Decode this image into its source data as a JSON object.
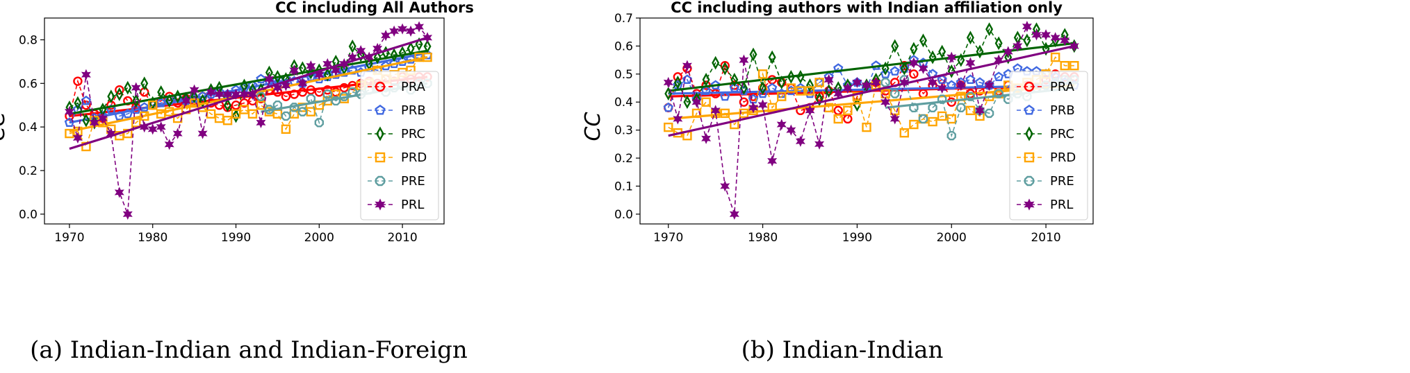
{
  "chart_data": [
    {
      "type": "line",
      "title": "CC including All Authors",
      "caption": "(a) Indian-Indian and Indian-Foreign",
      "ylabel": "CC",
      "xlabel": "",
      "xlim": [
        1967,
        2015
      ],
      "ylim": [
        -0.045,
        0.9
      ],
      "xticks": [
        1970,
        1980,
        1990,
        2000,
        2010
      ],
      "yticks": [
        0.0,
        0.2,
        0.4,
        0.6,
        0.8
      ],
      "ytick_labels": [
        "0.0",
        "0.2",
        "0.4",
        "0.6",
        "0.8"
      ],
      "legend_position": "lower-right",
      "x": [
        1970,
        1971,
        1972,
        1973,
        1974,
        1975,
        1976,
        1977,
        1978,
        1979,
        1980,
        1981,
        1982,
        1983,
        1984,
        1985,
        1986,
        1987,
        1988,
        1989,
        1990,
        1991,
        1992,
        1993,
        1994,
        1995,
        1996,
        1997,
        1998,
        1999,
        2000,
        2001,
        2002,
        2003,
        2004,
        2005,
        2006,
        2007,
        2008,
        2009,
        2010,
        2011,
        2012,
        2013
      ],
      "series": [
        {
          "name": "PRA",
          "color": "#ff0000",
          "marker": "circle",
          "values": [
            0.45,
            0.61,
            0.5,
            0.46,
            0.44,
            0.5,
            0.57,
            0.52,
            0.49,
            0.56,
            0.5,
            0.52,
            0.54,
            0.51,
            0.53,
            0.52,
            0.54,
            0.51,
            0.5,
            0.49,
            0.5,
            0.51,
            0.52,
            0.53,
            0.57,
            0.56,
            0.54,
            0.55,
            0.56,
            0.57,
            0.56,
            0.57,
            0.56,
            0.58,
            0.59,
            0.6,
            0.61,
            0.6,
            0.62,
            0.61,
            0.63,
            0.62,
            0.63,
            0.63
          ],
          "trend": [
            0.45,
            0.63
          ]
        },
        {
          "name": "PRB",
          "color": "#4169e1",
          "marker": "pentagon",
          "values": [
            0.42,
            0.48,
            0.52,
            0.44,
            0.45,
            0.48,
            0.45,
            0.46,
            0.48,
            0.49,
            0.5,
            0.51,
            0.52,
            0.53,
            0.52,
            0.53,
            0.54,
            0.55,
            0.56,
            0.55,
            0.57,
            0.58,
            0.59,
            0.62,
            0.61,
            0.6,
            0.62,
            0.61,
            0.6,
            0.63,
            0.62,
            0.63,
            0.64,
            0.65,
            0.66,
            0.65,
            0.67,
            0.66,
            0.68,
            0.69,
            0.7,
            0.71,
            0.72,
            0.73
          ],
          "trend": [
            0.42,
            0.74
          ]
        },
        {
          "name": "PRC",
          "color": "#006400",
          "marker": "diamond",
          "values": [
            0.49,
            0.51,
            0.43,
            0.42,
            0.48,
            0.54,
            0.55,
            0.58,
            0.52,
            0.6,
            0.51,
            0.56,
            0.52,
            0.54,
            0.53,
            0.54,
            0.52,
            0.57,
            0.58,
            0.5,
            0.45,
            0.59,
            0.57,
            0.57,
            0.65,
            0.63,
            0.62,
            0.68,
            0.67,
            0.65,
            0.66,
            0.64,
            0.7,
            0.67,
            0.77,
            0.73,
            0.69,
            0.72,
            0.74,
            0.73,
            0.74,
            0.76,
            0.78,
            0.77
          ],
          "trend": [
            0.46,
            0.75
          ]
        },
        {
          "name": "PRD",
          "color": "#ffa500",
          "marker": "square",
          "values": [
            0.37,
            0.38,
            0.31,
            0.43,
            0.42,
            0.39,
            0.36,
            0.37,
            0.42,
            0.45,
            0.5,
            0.46,
            0.47,
            0.44,
            0.48,
            0.51,
            0.49,
            0.46,
            0.44,
            0.43,
            0.46,
            0.48,
            0.46,
            0.5,
            0.47,
            0.46,
            0.39,
            0.46,
            0.49,
            0.47,
            0.5,
            0.52,
            0.55,
            0.53,
            0.56,
            0.59,
            0.6,
            0.66,
            0.62,
            0.64,
            0.65,
            0.66,
            0.72,
            0.72
          ],
          "trend": [
            0.38,
            0.72
          ]
        },
        {
          "name": "PRE",
          "color": "#5f9ea0",
          "marker": "octagon",
          "values": [
            null,
            null,
            null,
            null,
            null,
            null,
            null,
            null,
            null,
            null,
            null,
            null,
            null,
            null,
            null,
            null,
            null,
            null,
            null,
            null,
            null,
            null,
            null,
            0.54,
            0.48,
            0.5,
            0.45,
            0.49,
            0.47,
            0.53,
            0.42,
            0.55,
            0.52,
            0.54,
            0.56,
            0.55,
            0.57,
            0.58,
            0.56,
            0.58,
            0.59,
            0.57,
            0.6,
            0.6
          ],
          "trend": [
            0.47,
            0.6
          ]
        },
        {
          "name": "PRL",
          "color": "#800080",
          "marker": "star",
          "values": [
            0.47,
            0.35,
            0.64,
            0.42,
            0.44,
            0.37,
            0.1,
            0.0,
            0.58,
            0.4,
            0.39,
            0.4,
            0.32,
            0.37,
            0.52,
            0.57,
            0.37,
            0.56,
            0.55,
            0.55,
            0.55,
            0.55,
            0.55,
            0.42,
            0.62,
            0.58,
            0.59,
            0.66,
            0.6,
            0.68,
            0.64,
            0.69,
            0.66,
            0.69,
            0.72,
            0.75,
            0.72,
            0.76,
            0.82,
            0.84,
            0.85,
            0.84,
            0.86,
            0.81
          ],
          "trend": [
            0.3,
            0.81
          ]
        }
      ]
    },
    {
      "type": "line",
      "title": "CC including authors with Indian affiliation only",
      "caption": "(b) Indian-Indian",
      "ylabel": "CC",
      "xlabel": "",
      "xlim": [
        1967,
        2015
      ],
      "ylim": [
        -0.035,
        0.7
      ],
      "xticks": [
        1970,
        1980,
        1990,
        2000,
        2010
      ],
      "yticks": [
        0.0,
        0.1,
        0.2,
        0.3,
        0.4,
        0.5,
        0.6,
        0.7
      ],
      "ytick_labels": [
        "0.0",
        "0.1",
        "0.2",
        "0.3",
        "0.4",
        "0.5",
        "0.6",
        "0.7"
      ],
      "legend_position": "lower-right",
      "x": [
        1970,
        1971,
        1972,
        1973,
        1974,
        1975,
        1976,
        1977,
        1978,
        1979,
        1980,
        1981,
        1982,
        1983,
        1984,
        1985,
        1986,
        1987,
        1988,
        1989,
        1990,
        1991,
        1992,
        1993,
        1994,
        1995,
        1996,
        1997,
        1998,
        1999,
        2000,
        2001,
        2002,
        2003,
        2004,
        2005,
        2006,
        2007,
        2008,
        2009,
        2010,
        2011,
        2012,
        2013
      ],
      "series": [
        {
          "name": "PRA",
          "color": "#ff0000",
          "marker": "circle",
          "values": [
            0.38,
            0.49,
            0.52,
            0.43,
            0.46,
            0.43,
            0.53,
            0.46,
            0.4,
            0.42,
            0.45,
            0.48,
            0.47,
            0.45,
            0.37,
            0.38,
            0.42,
            0.44,
            0.37,
            0.34,
            0.42,
            0.45,
            0.47,
            0.44,
            0.47,
            0.53,
            0.5,
            0.43,
            0.46,
            0.48,
            0.4,
            0.46,
            0.43,
            0.44,
            0.46,
            0.44,
            0.46,
            0.45,
            0.46,
            0.45,
            0.48,
            0.5,
            0.49,
            0.49
          ],
          "trend": [
            0.42,
            0.46
          ]
        },
        {
          "name": "PRB",
          "color": "#4169e1",
          "marker": "pentagon",
          "values": [
            0.38,
            0.46,
            0.48,
            0.41,
            0.44,
            0.46,
            0.42,
            0.45,
            0.44,
            0.41,
            0.43,
            0.45,
            0.43,
            0.44,
            0.45,
            0.43,
            0.47,
            0.49,
            0.52,
            0.46,
            0.47,
            0.45,
            0.53,
            0.5,
            0.51,
            0.52,
            0.55,
            0.54,
            0.5,
            0.48,
            0.46,
            0.47,
            0.48,
            0.47,
            0.46,
            0.49,
            0.5,
            0.52,
            0.51,
            0.51,
            0.5,
            0.49,
            0.47,
            0.46
          ],
          "trend": [
            0.43,
            0.46
          ]
        },
        {
          "name": "PRC",
          "color": "#006400",
          "marker": "diamond",
          "values": [
            0.43,
            0.47,
            0.4,
            0.41,
            0.48,
            0.54,
            0.52,
            0.48,
            0.45,
            0.57,
            0.45,
            0.56,
            0.47,
            0.49,
            0.49,
            0.46,
            0.41,
            0.44,
            0.45,
            0.46,
            0.39,
            0.46,
            0.48,
            0.52,
            0.6,
            0.52,
            0.59,
            0.62,
            0.56,
            0.58,
            0.51,
            0.55,
            0.63,
            0.58,
            0.66,
            0.61,
            0.56,
            0.63,
            0.62,
            0.66,
            0.59,
            0.62,
            0.64,
            0.6
          ],
          "trend": [
            0.44,
            0.61
          ]
        },
        {
          "name": "PRD",
          "color": "#ffa500",
          "marker": "square",
          "values": [
            0.31,
            0.29,
            0.28,
            0.36,
            0.4,
            0.36,
            0.36,
            0.32,
            0.36,
            0.37,
            0.5,
            0.38,
            0.42,
            0.45,
            0.44,
            0.44,
            0.47,
            0.38,
            0.34,
            0.37,
            0.42,
            0.31,
            0.46,
            0.43,
            0.37,
            0.29,
            0.32,
            0.34,
            0.33,
            0.35,
            0.34,
            0.42,
            0.37,
            0.35,
            0.42,
            0.43,
            0.46,
            0.45,
            0.47,
            0.48,
            0.5,
            0.56,
            0.53,
            0.53
          ],
          "trend": [
            0.34,
            0.46
          ]
        },
        {
          "name": "PRE",
          "color": "#5f9ea0",
          "marker": "octagon",
          "values": [
            null,
            null,
            null,
            null,
            null,
            null,
            null,
            null,
            null,
            null,
            null,
            null,
            null,
            null,
            null,
            null,
            null,
            null,
            null,
            null,
            null,
            null,
            null,
            0.47,
            0.43,
            0.48,
            0.38,
            0.34,
            0.38,
            0.41,
            0.28,
            0.38,
            0.42,
            0.37,
            0.36,
            0.43,
            0.41,
            0.43,
            0.42,
            0.45,
            0.46,
            0.47,
            0.48,
            0.48
          ],
          "trend": [
            0.38,
            0.45
          ]
        },
        {
          "name": "PRL",
          "color": "#800080",
          "marker": "star",
          "values": [
            0.47,
            0.34,
            0.53,
            0.4,
            0.27,
            0.37,
            0.1,
            0.0,
            0.55,
            0.38,
            0.39,
            0.19,
            0.32,
            0.3,
            0.26,
            0.37,
            0.25,
            0.48,
            0.43,
            0.45,
            0.47,
            0.46,
            0.47,
            0.4,
            0.34,
            0.47,
            0.54,
            0.52,
            0.47,
            0.45,
            0.56,
            0.46,
            0.54,
            0.37,
            0.46,
            0.55,
            0.58,
            0.6,
            0.67,
            0.64,
            0.64,
            0.63,
            0.62,
            0.6
          ],
          "trend": [
            0.28,
            0.6
          ]
        }
      ]
    }
  ]
}
